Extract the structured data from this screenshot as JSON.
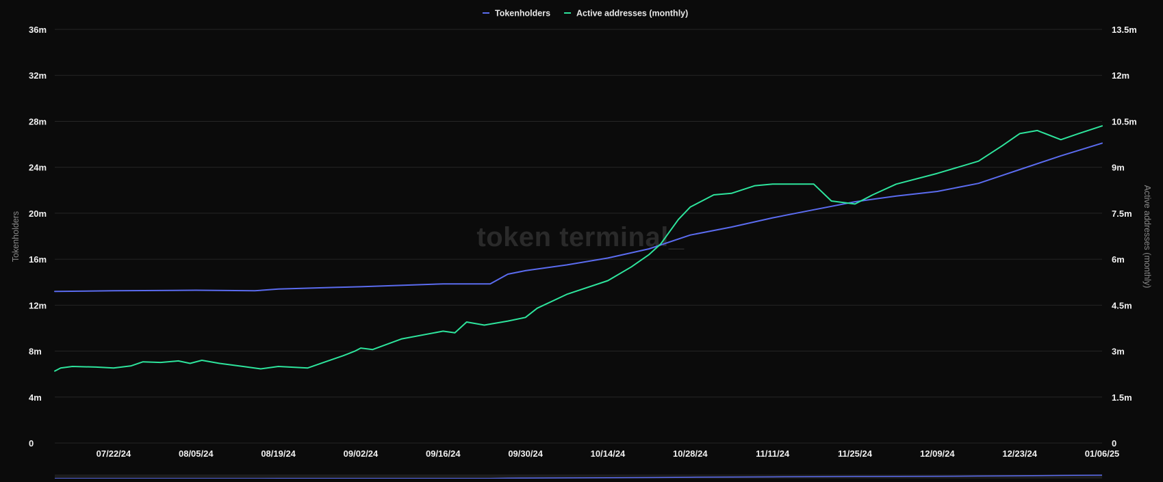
{
  "chart_data": {
    "type": "line",
    "title": "",
    "watermark": "token terminal_",
    "legend_position": "top-center",
    "grid": true,
    "x_tick_labels": [
      "07/22/24",
      "08/05/24",
      "08/19/24",
      "09/02/24",
      "09/16/24",
      "09/30/24",
      "10/14/24",
      "10/28/24",
      "11/11/24",
      "11/25/24",
      "12/09/24",
      "12/23/24",
      "01/06/25"
    ],
    "x_range": [
      "07/12/24",
      "01/06/25"
    ],
    "y_left": {
      "label": "Tokenholders",
      "ticks": [
        0,
        4,
        8,
        12,
        16,
        20,
        24,
        28,
        32,
        36
      ],
      "tick_labels": [
        "0",
        "4m",
        "8m",
        "12m",
        "16m",
        "20m",
        "24m",
        "28m",
        "32m",
        "36m"
      ],
      "range": [
        0,
        36
      ]
    },
    "y_right": {
      "label": "Active addresses (monthly)",
      "ticks": [
        0,
        1.5,
        3,
        4.5,
        6,
        7.5,
        9,
        10.5,
        12,
        13.5
      ],
      "tick_labels": [
        "0",
        "1.5m",
        "3m",
        "4.5m",
        "6m",
        "7.5m",
        "9m",
        "10.5m",
        "12m",
        "13.5m"
      ],
      "range": [
        0,
        13.5
      ]
    },
    "series": [
      {
        "name": "Tokenholders",
        "axis": "left",
        "color": "#5b6cf0",
        "unit": "m",
        "points": [
          [
            "07/12/24",
            13.2
          ],
          [
            "07/22/24",
            13.25
          ],
          [
            "08/05/24",
            13.3
          ],
          [
            "08/15/24",
            13.25
          ],
          [
            "08/19/24",
            13.4
          ],
          [
            "08/29/24",
            13.55
          ],
          [
            "09/02/24",
            13.6
          ],
          [
            "09/16/24",
            13.85
          ],
          [
            "09/24/24",
            13.85
          ],
          [
            "09/27/24",
            14.7
          ],
          [
            "09/30/24",
            15.0
          ],
          [
            "10/07/24",
            15.5
          ],
          [
            "10/14/24",
            16.1
          ],
          [
            "10/21/24",
            16.9
          ],
          [
            "10/28/24",
            18.1
          ],
          [
            "11/04/24",
            18.8
          ],
          [
            "11/11/24",
            19.6
          ],
          [
            "11/18/24",
            20.3
          ],
          [
            "11/25/24",
            21.0
          ],
          [
            "12/02/24",
            21.5
          ],
          [
            "12/09/24",
            21.9
          ],
          [
            "12/16/24",
            22.6
          ],
          [
            "12/23/24",
            23.8
          ],
          [
            "12/30/24",
            25.0
          ],
          [
            "01/06/25",
            26.1
          ]
        ]
      },
      {
        "name": "Active addresses (monthly)",
        "axis": "right",
        "color": "#2ee59d",
        "unit": "m",
        "points": [
          [
            "07/12/24",
            2.35
          ],
          [
            "07/13/24",
            2.45
          ],
          [
            "07/15/24",
            2.5
          ],
          [
            "07/19/24",
            2.48
          ],
          [
            "07/22/24",
            2.45
          ],
          [
            "07/25/24",
            2.52
          ],
          [
            "07/27/24",
            2.65
          ],
          [
            "07/30/24",
            2.63
          ],
          [
            "08/02/24",
            2.68
          ],
          [
            "08/04/24",
            2.6
          ],
          [
            "08/06/24",
            2.7
          ],
          [
            "08/09/24",
            2.6
          ],
          [
            "08/13/24",
            2.5
          ],
          [
            "08/16/24",
            2.42
          ],
          [
            "08/19/24",
            2.5
          ],
          [
            "08/24/24",
            2.45
          ],
          [
            "08/27/24",
            2.65
          ],
          [
            "08/30/24",
            2.85
          ],
          [
            "09/01/24",
            3.0
          ],
          [
            "09/02/24",
            3.1
          ],
          [
            "09/04/24",
            3.05
          ],
          [
            "09/09/24",
            3.4
          ],
          [
            "09/16/24",
            3.65
          ],
          [
            "09/18/24",
            3.6
          ],
          [
            "09/20/24",
            3.95
          ],
          [
            "09/23/24",
            3.85
          ],
          [
            "09/27/24",
            3.98
          ],
          [
            "09/30/24",
            4.1
          ],
          [
            "10/02/24",
            4.4
          ],
          [
            "10/07/24",
            4.85
          ],
          [
            "10/14/24",
            5.3
          ],
          [
            "10/18/24",
            5.75
          ],
          [
            "10/21/24",
            6.15
          ],
          [
            "10/23/24",
            6.5
          ],
          [
            "10/26/24",
            7.3
          ],
          [
            "10/28/24",
            7.7
          ],
          [
            "11/01/24",
            8.1
          ],
          [
            "11/04/24",
            8.15
          ],
          [
            "11/08/24",
            8.4
          ],
          [
            "11/11/24",
            8.45
          ],
          [
            "11/18/24",
            8.45
          ],
          [
            "11/21/24",
            7.9
          ],
          [
            "11/25/24",
            7.8
          ],
          [
            "11/28/24",
            8.1
          ],
          [
            "12/02/24",
            8.45
          ],
          [
            "12/09/24",
            8.8
          ],
          [
            "12/16/24",
            9.2
          ],
          [
            "12/20/24",
            9.7
          ],
          [
            "12/23/24",
            10.1
          ],
          [
            "12/26/24",
            10.2
          ],
          [
            "12/30/24",
            9.9
          ],
          [
            "01/02/25",
            10.1
          ],
          [
            "01/06/25",
            10.35
          ]
        ]
      }
    ]
  }
}
